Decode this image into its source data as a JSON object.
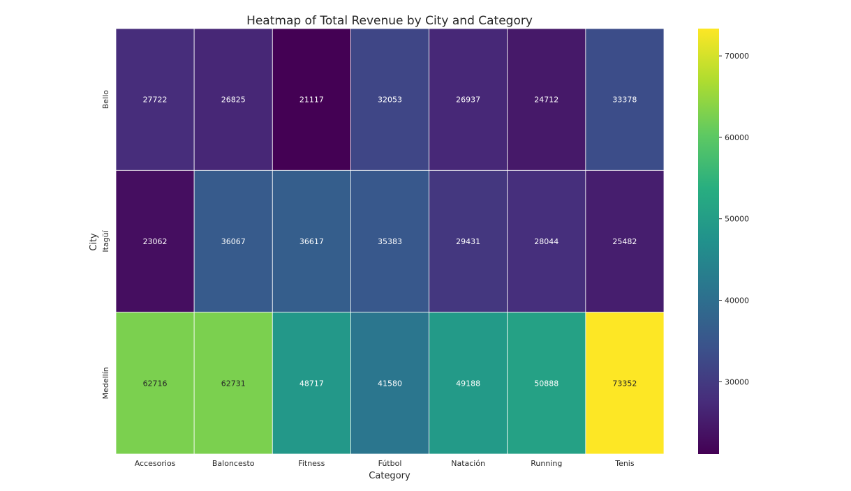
{
  "chart_data": {
    "type": "heatmap",
    "title": "Heatmap of Total Revenue by City and Category",
    "xlabel": "Category",
    "ylabel": "City",
    "x_categories": [
      "Accesorios",
      "Baloncesto",
      "Fitness",
      "Fútbol",
      "Natación",
      "Running",
      "Tenis"
    ],
    "y_categories": [
      "Bello",
      "Itagüí",
      "Medellín"
    ],
    "values": [
      [
        27722,
        26825,
        21117,
        32053,
        26937,
        24712,
        33378
      ],
      [
        23062,
        36067,
        36617,
        35383,
        29431,
        28044,
        25482
      ],
      [
        62716,
        62731,
        48717,
        41580,
        49188,
        50888,
        73352
      ]
    ],
    "colorscale": "viridis",
    "colorbar": {
      "min": 21117,
      "max": 73352,
      "ticks": [
        30000,
        40000,
        50000,
        60000,
        70000
      ],
      "tick_labels": [
        "30000",
        "40000",
        "50000",
        "60000",
        "70000"
      ]
    },
    "cell_border_color": "#ffffff",
    "grid": false
  }
}
